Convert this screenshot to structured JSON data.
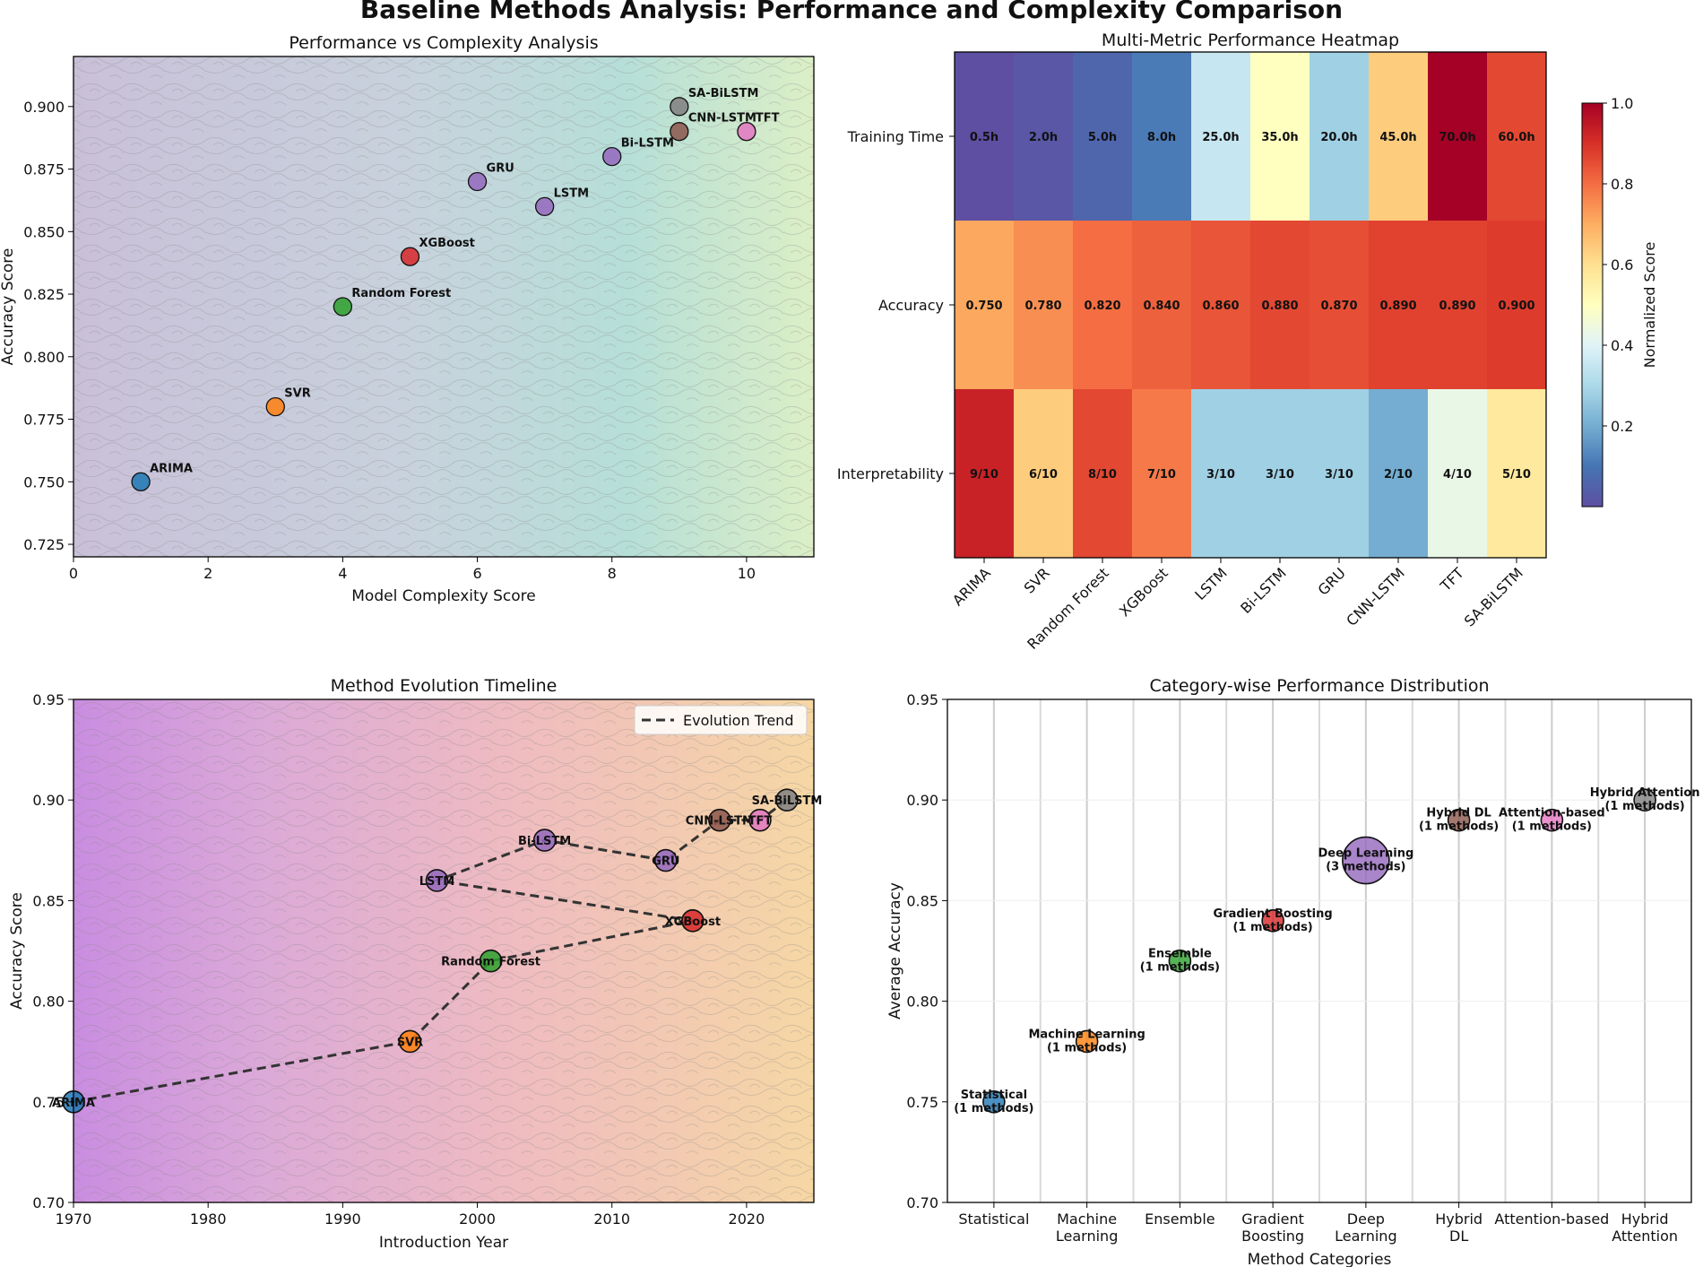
{
  "suptitle": "Baseline Methods Analysis: Performance and Complexity Comparison",
  "chart_data": [
    {
      "type": "scatter",
      "title": "Performance vs Complexity Analysis",
      "xlabel": "Model Complexity Score",
      "ylabel": "Accuracy Score",
      "xlim": [
        0,
        11
      ],
      "ylim": [
        0.72,
        0.92
      ],
      "xticks": [
        "0",
        "2",
        "4",
        "6",
        "8",
        "10"
      ],
      "yticks": [
        "0.725",
        "0.750",
        "0.775",
        "0.800",
        "0.825",
        "0.850",
        "0.875",
        "0.900"
      ],
      "points": [
        {
          "label": "ARIMA",
          "x": 1,
          "y": 0.75,
          "color": "#1f77b4"
        },
        {
          "label": "SVR",
          "x": 3,
          "y": 0.78,
          "color": "#ff7f0e"
        },
        {
          "label": "Random Forest",
          "x": 4,
          "y": 0.82,
          "color": "#2ca02c"
        },
        {
          "label": "XGBoost",
          "x": 5,
          "y": 0.84,
          "color": "#d62728"
        },
        {
          "label": "GRU",
          "x": 6,
          "y": 0.87,
          "color": "#9467bd"
        },
        {
          "label": "LSTM",
          "x": 7,
          "y": 0.86,
          "color": "#9467bd"
        },
        {
          "label": "Bi-LSTM",
          "x": 8,
          "y": 0.88,
          "color": "#9467bd"
        },
        {
          "label": "CNN-LSTM",
          "x": 9,
          "y": 0.89,
          "color": "#8c564b"
        },
        {
          "label": "SA-BiLSTM",
          "x": 9,
          "y": 0.9,
          "color": "#7f7f7f"
        },
        {
          "label": "TFT",
          "x": 10,
          "y": 0.89,
          "color": "#e377c2"
        }
      ]
    },
    {
      "type": "heatmap",
      "title": "Multi-Metric Performance Heatmap",
      "columns": [
        "ARIMA",
        "SVR",
        "Random Forest",
        "XGBoost",
        "LSTM",
        "Bi-LSTM",
        "GRU",
        "CNN-LSTM",
        "TFT",
        "SA-BiLSTM"
      ],
      "rows": [
        "Training Time",
        "Accuracy",
        "Interpretability"
      ],
      "values": [
        [
          0.0,
          0.02,
          0.06,
          0.11,
          0.35,
          0.5,
          0.28,
          0.64,
          1.0,
          0.86
        ],
        [
          0.71,
          0.75,
          0.8,
          0.82,
          0.84,
          0.86,
          0.85,
          0.87,
          0.87,
          0.88
        ],
        [
          0.93,
          0.64,
          0.86,
          0.78,
          0.28,
          0.28,
          0.28,
          0.2,
          0.43,
          0.57
        ]
      ],
      "cell_labels": [
        [
          "0.5h",
          "2.0h",
          "5.0h",
          "8.0h",
          "25.0h",
          "35.0h",
          "20.0h",
          "45.0h",
          "70.0h",
          "60.0h"
        ],
        [
          "0.750",
          "0.780",
          "0.820",
          "0.840",
          "0.860",
          "0.880",
          "0.870",
          "0.890",
          "0.890",
          "0.900"
        ],
        [
          "9/10",
          "6/10",
          "8/10",
          "7/10",
          "3/10",
          "3/10",
          "3/10",
          "2/10",
          "4/10",
          "5/10"
        ]
      ],
      "colormap": "RdYlBu_r",
      "colorbar_label": "Normalized Score",
      "colorbar_ticks": [
        "0.2",
        "0.4",
        "0.6",
        "0.8",
        "1.0"
      ],
      "colorbar_tick_values": [
        0.2,
        0.4,
        0.6,
        0.8,
        1.0
      ],
      "colorbar_range": [
        0.0,
        1.0
      ]
    },
    {
      "type": "line",
      "title": "Method Evolution Timeline",
      "xlabel": "Introduction Year",
      "ylabel": "Accuracy Score",
      "xlim": [
        1970,
        2025
      ],
      "ylim": [
        0.7,
        0.95
      ],
      "xticks": [
        "1970",
        "1980",
        "1990",
        "2000",
        "2010",
        "2020"
      ],
      "yticks": [
        "0.70",
        "0.75",
        "0.80",
        "0.85",
        "0.90",
        "0.95"
      ],
      "legend": "Evolution Trend",
      "legend_position": "top-right",
      "points": [
        {
          "label": "ARIMA",
          "x": 1970,
          "y": 0.75,
          "color": "#1f77b4"
        },
        {
          "label": "SVR",
          "x": 1995,
          "y": 0.78,
          "color": "#ff7f0e"
        },
        {
          "label": "Random Forest",
          "x": 2001,
          "y": 0.82,
          "color": "#2ca02c"
        },
        {
          "label": "XGBoost",
          "x": 2016,
          "y": 0.84,
          "color": "#d62728"
        },
        {
          "label": "LSTM",
          "x": 1997,
          "y": 0.86,
          "color": "#9467bd"
        },
        {
          "label": "Bi-LSTM",
          "x": 2005,
          "y": 0.88,
          "color": "#9467bd"
        },
        {
          "label": "GRU",
          "x": 2014,
          "y": 0.87,
          "color": "#9467bd"
        },
        {
          "label": "CNN-LSTM",
          "x": 2018,
          "y": 0.89,
          "color": "#8c564b"
        },
        {
          "label": "TFT",
          "x": 2021,
          "y": 0.89,
          "color": "#e377c2"
        },
        {
          "label": "SA-BiLSTM",
          "x": 2023,
          "y": 0.9,
          "color": "#7f7f7f"
        }
      ],
      "trend_order": [
        "ARIMA",
        "SVR",
        "Random Forest",
        "XGBoost",
        "LSTM",
        "Bi-LSTM",
        "GRU",
        "CNN-LSTM",
        "TFT",
        "SA-BiLSTM"
      ]
    },
    {
      "type": "scatter",
      "title": "Category-wise Performance Distribution",
      "xlabel": "Method Categories",
      "ylabel": "Average Accuracy",
      "ylim": [
        0.7,
        0.95
      ],
      "yticks": [
        "0.70",
        "0.75",
        "0.80",
        "0.85",
        "0.90",
        "0.95"
      ],
      "categories": [
        {
          "tick": [
            "Statistical"
          ],
          "label": "Statistical\n(1 methods)",
          "value": 0.75,
          "count": 1,
          "color": "#1f77b4"
        },
        {
          "tick": [
            "Machine",
            "Learning"
          ],
          "label": "Machine Learning\n(1 methods)",
          "value": 0.78,
          "count": 1,
          "color": "#ff7f0e"
        },
        {
          "tick": [
            "Ensemble"
          ],
          "label": "Ensemble\n(1 methods)",
          "value": 0.82,
          "count": 1,
          "color": "#2ca02c"
        },
        {
          "tick": [
            "Gradient",
            "Boosting"
          ],
          "label": "Gradient Boosting\n(1 methods)",
          "value": 0.84,
          "count": 1,
          "color": "#d62728"
        },
        {
          "tick": [
            "Deep",
            "Learning"
          ],
          "label": "Deep Learning\n(3 methods)",
          "value": 0.87,
          "count": 3,
          "color": "#9467bd"
        },
        {
          "tick": [
            "Hybrid",
            "DL"
          ],
          "label": "Hybrid DL\n(1 methods)",
          "value": 0.89,
          "count": 1,
          "color": "#8c564b"
        },
        {
          "tick": [
            "Attention-based"
          ],
          "label": "Attention-based\n(1 methods)",
          "value": 0.89,
          "count": 1,
          "color": "#e377c2"
        },
        {
          "tick": [
            "Hybrid",
            "Attention"
          ],
          "label": "Hybrid Attention\n(1 methods)",
          "value": 0.9,
          "count": 1,
          "color": "#7f7f7f"
        }
      ]
    }
  ]
}
